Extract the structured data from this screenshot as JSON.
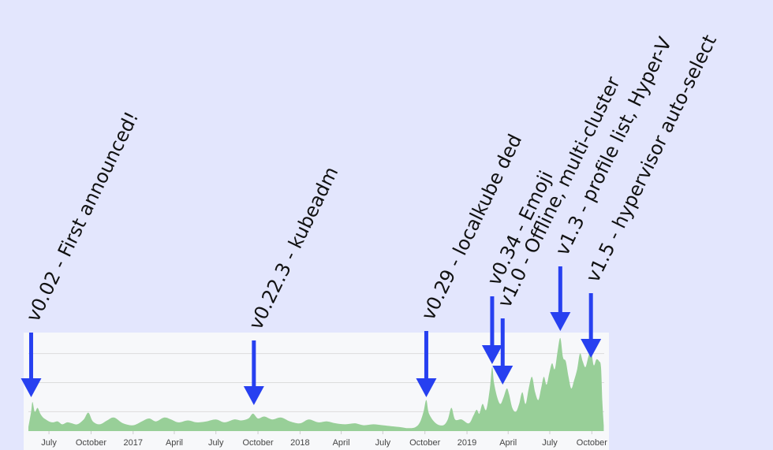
{
  "chart_data": {
    "type": "area",
    "colors": {
      "page_background": "#e3e6fd",
      "plot_background": "#f7f8fa",
      "area_fill": "#98cf98",
      "gridline": "#dcdcdc",
      "arrow": "#2740f0"
    },
    "grid": true,
    "x_ticks": [
      "July",
      "October",
      "2017",
      "April",
      "July",
      "October",
      "2018",
      "April",
      "July",
      "October",
      "2019",
      "April",
      "July",
      "October"
    ],
    "x_tick_dates": [
      "2016-07-01",
      "2016-10-01",
      "2017-01-01",
      "2017-04-01",
      "2017-07-01",
      "2017-10-01",
      "2018-01-01",
      "2018-04-01",
      "2018-07-01",
      "2018-10-01",
      "2019-01-01",
      "2019-04-01",
      "2019-07-01",
      "2019-10-01"
    ],
    "xlim": [
      "2016-05-17",
      "2019-10-28"
    ],
    "ylim": [
      0,
      100
    ],
    "series": [
      {
        "points": [
          [
            "2016-05-17",
            4
          ],
          [
            "2016-05-23",
            20
          ],
          [
            "2016-05-26",
            30
          ],
          [
            "2016-05-31",
            20
          ],
          [
            "2016-06-06",
            24
          ],
          [
            "2016-06-12",
            18
          ],
          [
            "2016-06-18",
            14
          ],
          [
            "2016-06-24",
            12
          ],
          [
            "2016-07-01",
            10
          ],
          [
            "2016-07-10",
            9
          ],
          [
            "2016-07-20",
            10
          ],
          [
            "2016-07-30",
            7
          ],
          [
            "2016-08-10",
            9
          ],
          [
            "2016-08-20",
            8
          ],
          [
            "2016-09-01",
            7
          ],
          [
            "2016-09-15",
            12
          ],
          [
            "2016-09-25",
            19
          ],
          [
            "2016-10-05",
            10
          ],
          [
            "2016-10-20",
            7
          ],
          [
            "2016-11-05",
            11
          ],
          [
            "2016-11-20",
            14
          ],
          [
            "2016-12-10",
            8
          ],
          [
            "2017-01-01",
            6
          ],
          [
            "2017-01-20",
            10
          ],
          [
            "2017-02-05",
            13
          ],
          [
            "2017-02-20",
            10
          ],
          [
            "2017-03-10",
            14
          ],
          [
            "2017-03-25",
            12
          ],
          [
            "2017-04-10",
            9
          ],
          [
            "2017-05-01",
            11
          ],
          [
            "2017-05-20",
            9
          ],
          [
            "2017-06-10",
            10
          ],
          [
            "2017-07-01",
            12
          ],
          [
            "2017-07-20",
            9
          ],
          [
            "2017-08-10",
            12
          ],
          [
            "2017-08-25",
            11
          ],
          [
            "2017-09-10",
            13
          ],
          [
            "2017-09-20",
            18
          ],
          [
            "2017-10-01",
            13
          ],
          [
            "2017-10-15",
            15
          ],
          [
            "2017-11-01",
            12
          ],
          [
            "2017-11-20",
            14
          ],
          [
            "2017-12-10",
            10
          ],
          [
            "2018-01-01",
            8
          ],
          [
            "2018-01-20",
            12
          ],
          [
            "2018-02-10",
            9
          ],
          [
            "2018-03-01",
            10
          ],
          [
            "2018-03-20",
            8
          ],
          [
            "2018-04-10",
            7
          ],
          [
            "2018-05-01",
            8
          ],
          [
            "2018-05-20",
            6
          ],
          [
            "2018-06-10",
            7
          ],
          [
            "2018-07-01",
            6
          ],
          [
            "2018-07-20",
            5
          ],
          [
            "2018-08-10",
            4
          ],
          [
            "2018-08-25",
            3
          ],
          [
            "2018-09-10",
            4
          ],
          [
            "2018-09-20",
            9
          ],
          [
            "2018-09-28",
            20
          ],
          [
            "2018-10-04",
            32
          ],
          [
            "2018-10-10",
            18
          ],
          [
            "2018-10-25",
            8
          ],
          [
            "2018-11-10",
            6
          ],
          [
            "2018-11-20",
            12
          ],
          [
            "2018-11-28",
            24
          ],
          [
            "2018-12-06",
            12
          ],
          [
            "2018-12-20",
            12
          ],
          [
            "2019-01-05",
            8
          ],
          [
            "2019-01-15",
            16
          ],
          [
            "2019-01-22",
            22
          ],
          [
            "2019-01-28",
            18
          ],
          [
            "2019-02-04",
            28
          ],
          [
            "2019-02-12",
            22
          ],
          [
            "2019-02-20",
            44
          ],
          [
            "2019-02-25",
            66
          ],
          [
            "2019-03-01",
            50
          ],
          [
            "2019-03-08",
            35
          ],
          [
            "2019-03-15",
            28
          ],
          [
            "2019-03-22",
            35
          ],
          [
            "2019-03-29",
            44
          ],
          [
            "2019-04-03",
            38
          ],
          [
            "2019-04-10",
            24
          ],
          [
            "2019-04-18",
            20
          ],
          [
            "2019-04-25",
            28
          ],
          [
            "2019-05-02",
            40
          ],
          [
            "2019-05-09",
            28
          ],
          [
            "2019-05-16",
            44
          ],
          [
            "2019-05-23",
            56
          ],
          [
            "2019-05-30",
            40
          ],
          [
            "2019-06-06",
            32
          ],
          [
            "2019-06-12",
            44
          ],
          [
            "2019-06-18",
            56
          ],
          [
            "2019-06-24",
            48
          ],
          [
            "2019-06-30",
            60
          ],
          [
            "2019-07-06",
            70
          ],
          [
            "2019-07-12",
            64
          ],
          [
            "2019-07-18",
            82
          ],
          [
            "2019-07-24",
            96
          ],
          [
            "2019-07-30",
            76
          ],
          [
            "2019-08-05",
            72
          ],
          [
            "2019-08-11",
            56
          ],
          [
            "2019-08-17",
            44
          ],
          [
            "2019-08-23",
            52
          ],
          [
            "2019-08-30",
            64
          ],
          [
            "2019-09-05",
            80
          ],
          [
            "2019-09-11",
            72
          ],
          [
            "2019-09-17",
            66
          ],
          [
            "2019-09-23",
            76
          ],
          [
            "2019-09-29",
            84
          ],
          [
            "2019-10-05",
            68
          ],
          [
            "2019-10-11",
            74
          ],
          [
            "2019-10-17",
            72
          ],
          [
            "2019-10-21",
            66
          ],
          [
            "2019-10-24",
            30
          ],
          [
            "2019-10-27",
            6
          ]
        ]
      }
    ],
    "annotations": [
      {
        "label": "v0.02 - First announced!",
        "date": "2016-05-23"
      },
      {
        "label": "v0.22.3 - kubeadm",
        "date": "2017-09-22"
      },
      {
        "label": "v0.29 - localkube ded",
        "date": "2018-10-04"
      },
      {
        "label": "v0.34 - Emoji",
        "date": "2019-02-25"
      },
      {
        "label": "v1.0 - Offline, multi-cluster",
        "date": "2019-03-20"
      },
      {
        "label": "v1.3 - profile list, Hyper-V",
        "date": "2019-07-24"
      },
      {
        "label": "v1.5 - hypervisor auto-select",
        "date": "2019-09-29"
      }
    ]
  }
}
